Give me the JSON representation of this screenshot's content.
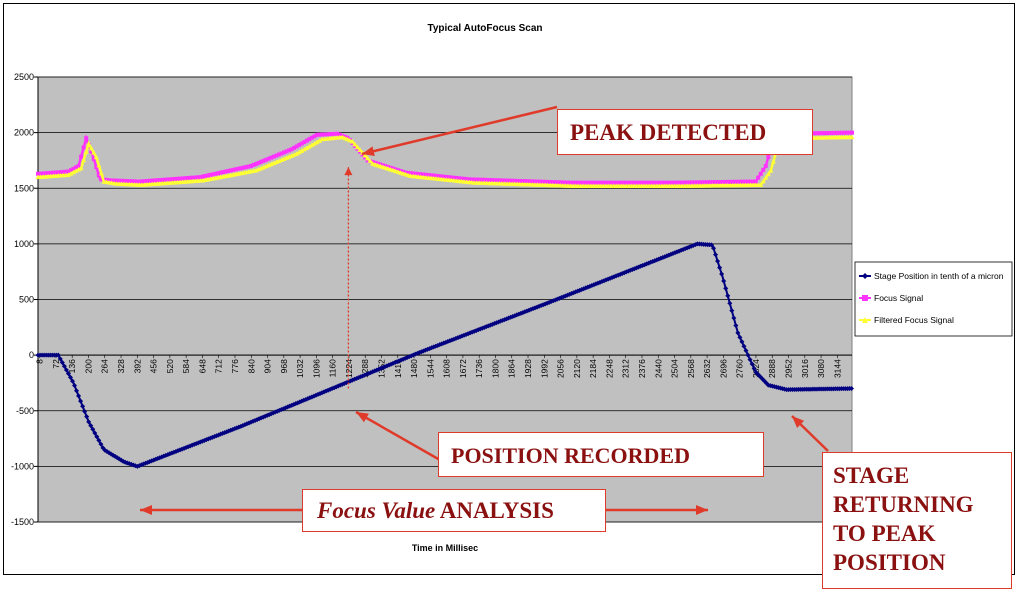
{
  "callouts": {
    "peak": "PEAK DETECTED",
    "position": "POSITION RECORDED",
    "analysis_italic": "Focus Value",
    "analysis_rest": "ANALYSIS",
    "stage_lines": [
      "STAGE",
      "RETURNING",
      "TO PEAK",
      "POSITION"
    ]
  },
  "colors": {
    "plot_bg": "#c0c0c0",
    "stage": "#000080",
    "focus": "#ff33ff",
    "filtered": "#ffff33",
    "callout_red": "#e03a2a",
    "callout_text": "#8b1010"
  },
  "chart_data": {
    "type": "line",
    "title": "Typical AutoFocus Scan",
    "xlabel": "Time in Millisec",
    "ylabel": "",
    "ylim": [
      -1500,
      2500
    ],
    "yticks": [
      -1500,
      -1000,
      -500,
      0,
      500,
      1000,
      1500,
      2000,
      2500
    ],
    "xlim": [
      0,
      3210
    ],
    "xtick_labels": [
      "8",
      "72",
      "136",
      "200",
      "264",
      "328",
      "392",
      "456",
      "520",
      "584",
      "648",
      "712",
      "776",
      "840",
      "904",
      "968",
      "1032",
      "1096",
      "1160",
      "1224",
      "1288",
      "1352",
      "1416",
      "1480",
      "1544",
      "1608",
      "1672",
      "1736",
      "1800",
      "1864",
      "1928",
      "1992",
      "2056",
      "2120",
      "2184",
      "2248",
      "2312",
      "2376",
      "2440",
      "2504",
      "2568",
      "2632",
      "2696",
      "2760",
      "2824",
      "2888",
      "2952",
      "3016",
      "3080",
      "3144"
    ],
    "legend_position": "right",
    "grid": "horizontal",
    "series": [
      {
        "name": "Stage Position in tenth of a micron",
        "x": [
          0,
          80,
          140,
          200,
          260,
          340,
          392,
          800,
          1224,
          1500,
          2000,
          2600,
          2660,
          2700,
          2760,
          2830,
          2880,
          2952,
          3210
        ],
        "y": [
          0,
          0,
          -250,
          -600,
          -850,
          -960,
          -1000,
          -640,
          -240,
          20,
          460,
          1000,
          990,
          700,
          200,
          -150,
          -270,
          -310,
          -300
        ]
      },
      {
        "name": "Focus Signal",
        "x": [
          0,
          120,
          160,
          190,
          215,
          245,
          290,
          400,
          640,
          840,
          1000,
          1100,
          1180,
          1224,
          1300,
          1450,
          1700,
          2100,
          2500,
          2830,
          2870,
          2900,
          2950,
          3210
        ],
        "y": [
          1630,
          1650,
          1700,
          1950,
          1800,
          1580,
          1570,
          1560,
          1600,
          1700,
          1850,
          1980,
          1990,
          1950,
          1750,
          1640,
          1580,
          1550,
          1550,
          1560,
          1700,
          1940,
          1990,
          2000
        ]
      },
      {
        "name": "Filtered Focus Signal",
        "x": [
          0,
          120,
          170,
          200,
          230,
          260,
          310,
          410,
          650,
          860,
          1020,
          1120,
          1200,
          1240,
          1320,
          1470,
          1720,
          2120,
          2520,
          2850,
          2890,
          2920,
          2970,
          3210
        ],
        "y": [
          1600,
          1620,
          1680,
          1900,
          1780,
          1560,
          1540,
          1530,
          1570,
          1660,
          1810,
          1940,
          1960,
          1920,
          1720,
          1610,
          1550,
          1520,
          1520,
          1530,
          1660,
          1900,
          1950,
          1960
        ]
      }
    ],
    "annotation_lines": [
      {
        "from_series": "Focus Signal",
        "x": 1224
      }
    ]
  }
}
